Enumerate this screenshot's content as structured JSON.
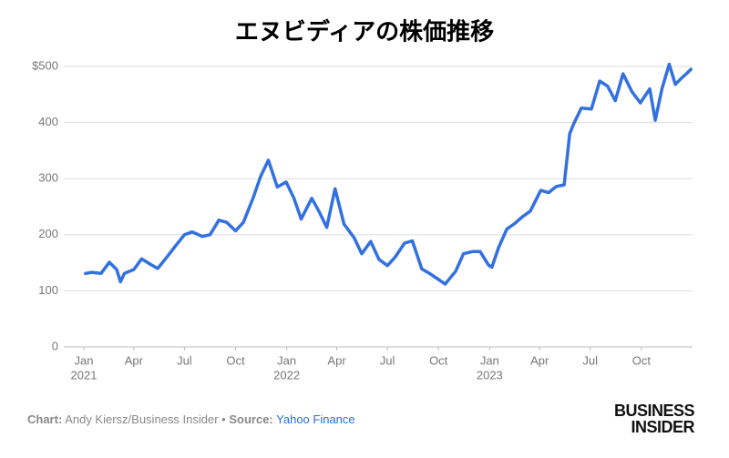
{
  "chart_data": {
    "type": "line",
    "title": "エヌビディアの株価推移",
    "x": [
      "2021-01-04",
      "2021-01-15",
      "2021-02-01",
      "2021-02-16",
      "2021-03-01",
      "2021-03-08",
      "2021-03-15",
      "2021-04-01",
      "2021-04-15",
      "2021-05-03",
      "2021-05-14",
      "2021-06-01",
      "2021-06-15",
      "2021-07-01",
      "2021-07-15",
      "2021-08-02",
      "2021-08-16",
      "2021-09-01",
      "2021-09-15",
      "2021-10-01",
      "2021-10-15",
      "2021-11-01",
      "2021-11-15",
      "2021-11-29",
      "2021-12-15",
      "2021-12-31",
      "2022-01-14",
      "2022-01-27",
      "2022-02-15",
      "2022-03-01",
      "2022-03-14",
      "2022-03-29",
      "2022-04-14",
      "2022-05-02",
      "2022-05-16",
      "2022-06-01",
      "2022-06-16",
      "2022-07-01",
      "2022-07-15",
      "2022-08-01",
      "2022-08-15",
      "2022-09-01",
      "2022-09-15",
      "2022-09-30",
      "2022-10-13",
      "2022-11-01",
      "2022-11-15",
      "2022-12-01",
      "2022-12-15",
      "2022-12-30",
      "2023-01-05",
      "2023-01-17",
      "2023-02-01",
      "2023-02-15",
      "2023-03-01",
      "2023-03-15",
      "2023-04-03",
      "2023-04-17",
      "2023-05-01",
      "2023-05-15",
      "2023-05-25",
      "2023-06-01",
      "2023-06-15",
      "2023-07-03",
      "2023-07-18",
      "2023-08-01",
      "2023-08-15",
      "2023-08-29",
      "2023-09-14",
      "2023-09-29",
      "2023-10-16",
      "2023-10-26",
      "2023-11-07",
      "2023-11-20",
      "2023-12-01",
      "2023-12-13",
      "2023-12-22",
      "2023-12-29"
    ],
    "values": [
      131,
      133,
      131,
      151,
      138,
      116,
      131,
      138,
      157,
      146,
      140,
      162,
      180,
      200,
      205,
      197,
      200,
      226,
      222,
      207,
      222,
      264,
      304,
      333,
      285,
      294,
      265,
      228,
      265,
      240,
      213,
      282,
      219,
      195,
      166,
      188,
      156,
      145,
      160,
      185,
      189,
      139,
      131,
      121,
      112,
      135,
      166,
      170,
      170,
      146,
      142,
      177,
      210,
      220,
      232,
      242,
      279,
      275,
      286,
      289,
      380,
      397,
      426,
      424,
      474,
      465,
      439,
      487,
      455,
      435,
      460,
      404,
      460,
      504,
      468,
      480,
      488,
      495
    ],
    "color": "#3370e0",
    "xlim": [
      "2020-11-26",
      "2024-01-01"
    ],
    "xticks": [
      {
        "value": "2021-01-01",
        "label": "Jan",
        "year": "2021"
      },
      {
        "value": "2021-04-01",
        "label": "Apr"
      },
      {
        "value": "2021-07-01",
        "label": "Jul"
      },
      {
        "value": "2021-10-01",
        "label": "Oct"
      },
      {
        "value": "2022-01-01",
        "label": "Jan",
        "year": "2022"
      },
      {
        "value": "2022-04-01",
        "label": "Apr"
      },
      {
        "value": "2022-07-01",
        "label": "Jul"
      },
      {
        "value": "2022-10-01",
        "label": "Oct"
      },
      {
        "value": "2023-01-01",
        "label": "Jan",
        "year": "2023"
      },
      {
        "value": "2023-04-01",
        "label": "Apr"
      },
      {
        "value": "2023-07-01",
        "label": "Jul"
      },
      {
        "value": "2023-10-01",
        "label": "Oct"
      }
    ],
    "ylim": [
      0,
      500
    ],
    "yticks": [
      0,
      100,
      200,
      300,
      400,
      {
        "value": 500,
        "label": "$500"
      }
    ],
    "grid": true
  },
  "footer": {
    "credit_label": "Chart:",
    "credit": "Andy Kiersz/Business Insider",
    "separator": "•",
    "source_label": "Source:",
    "source": "Yahoo Finance"
  },
  "logo": [
    "BUSINESS",
    "INSIDER"
  ]
}
